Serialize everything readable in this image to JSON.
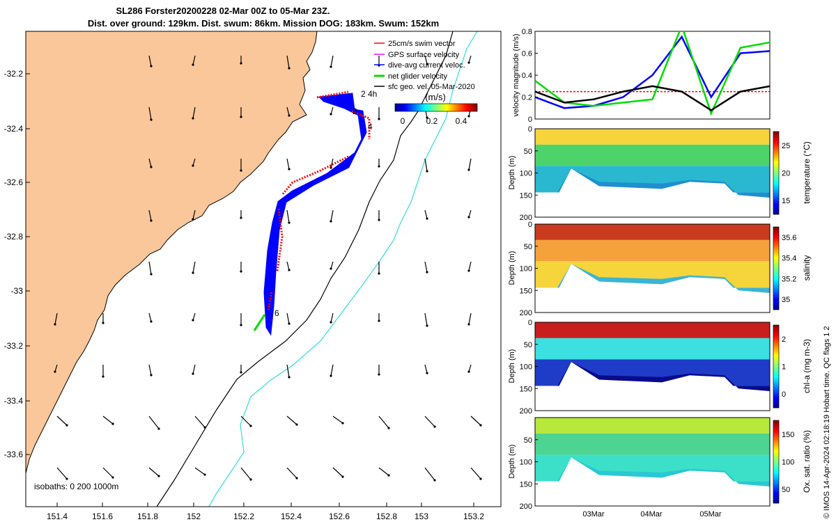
{
  "header": {
    "title_line1": "SL286 Forster20200228 02-Mar 00Z to 05-Mar 23Z.",
    "title_line2": "Dist. over ground: 129km. Dist. swum: 86km. Mission DOG: 183km. Swum: 152km"
  },
  "map": {
    "xticks": [
      "151.4",
      "151.6",
      "151.8",
      "152",
      "152.2",
      "152.4",
      "152.6",
      "152.8",
      "153",
      "153.2"
    ],
    "yticks": [
      "-32.2",
      "-32.4",
      "-32.6",
      "-32.8",
      "-33",
      "-33.2",
      "-33.4",
      "-33.6"
    ],
    "isobaths_label": "isobaths: 0   200  1000m",
    "legend": [
      {
        "label": "25cm/s swim vector",
        "color": "#ff0000"
      },
      {
        "label": "GPS surface velocity",
        "color": "#ff00ff"
      },
      {
        "label": "dive-avg current veloc.",
        "color": "#0000ff"
      },
      {
        "label": "net glider velocity",
        "color": "#00dd00"
      },
      {
        "label": "sfc geo. vel. 05-Mar-2020",
        "color": "#000000"
      }
    ],
    "colorbar": {
      "title": "(m/s)",
      "ticks": [
        "0",
        "0.2",
        "0.4"
      ]
    },
    "track_labels": [
      "2 4h",
      "2",
      "4",
      "6"
    ],
    "colors": {
      "land": "#f9c79a",
      "sea": "#ffffff",
      "isobath_200": "#000000",
      "isobath_1000": "#33dddd"
    }
  },
  "right_panels": {
    "xticks": [
      "03Mar",
      "04Mar",
      "05Mar"
    ],
    "velocity": {
      "ylabel": "velocity magnitude (m/s)",
      "yticks": [
        "0",
        "0.2",
        "0.4",
        "0.6",
        "0.8"
      ]
    },
    "sections": [
      {
        "ylabel": "Depth (m)",
        "yticks": [
          "0",
          "50",
          "100",
          "150",
          "200"
        ],
        "cbar_label": "temperature (°C)",
        "cbar_ticks": [
          "15",
          "20",
          "25"
        ]
      },
      {
        "ylabel": "Depth (m)",
        "yticks": [
          "0",
          "50",
          "100",
          "150",
          "200"
        ],
        "cbar_label": "salinity",
        "cbar_ticks": [
          "35",
          "35.2",
          "35.4",
          "35.6"
        ]
      },
      {
        "ylabel": "Depth (m)",
        "yticks": [
          "0",
          "50",
          "100",
          "150",
          "200"
        ],
        "cbar_label": "chl-a (mg m-3)",
        "cbar_ticks": [
          "0",
          "1",
          "2"
        ]
      },
      {
        "ylabel": "Depth (m)",
        "yticks": [
          "50",
          "100",
          "150",
          "200"
        ],
        "cbar_label": "Ox. sat. ratio (%)",
        "cbar_ticks": [
          "50",
          "100",
          "150"
        ]
      }
    ],
    "side_note": "© IMOS 14-Apr-2024 02:18:19 Hobart time. QC flags 1  2"
  },
  "chart_data": [
    {
      "type": "line",
      "title": "",
      "ylabel": "velocity magnitude (m/s)",
      "ylim": [
        0,
        0.8
      ],
      "x": [
        "02-Mar 00Z",
        "02-Mar 12Z",
        "03-Mar 00Z",
        "03-Mar 12Z",
        "04-Mar 00Z",
        "04-Mar 12Z",
        "05-Mar 00Z",
        "05-Mar 12Z",
        "05-Mar 23Z"
      ],
      "series": [
        {
          "name": "25cm/s swim vector",
          "color": "#ff0000",
          "values": [
            0.25,
            0.25,
            0.25,
            0.25,
            0.25,
            0.25,
            0.25,
            0.25,
            0.25
          ]
        },
        {
          "name": "dive-avg current veloc.",
          "color": "#0000ff",
          "values": [
            0.2,
            0.1,
            0.12,
            0.2,
            0.4,
            0.75,
            0.2,
            0.6,
            0.62
          ]
        },
        {
          "name": "net glider velocity",
          "color": "#00dd00",
          "values": [
            0.35,
            0.15,
            0.12,
            0.15,
            0.18,
            0.85,
            0.05,
            0.65,
            0.7
          ]
        },
        {
          "name": "sfc geo. vel. 05-Mar-2020",
          "color": "#000000",
          "values": [
            0.25,
            0.15,
            0.18,
            0.25,
            0.3,
            0.25,
            0.08,
            0.25,
            0.3
          ]
        }
      ]
    }
  ]
}
